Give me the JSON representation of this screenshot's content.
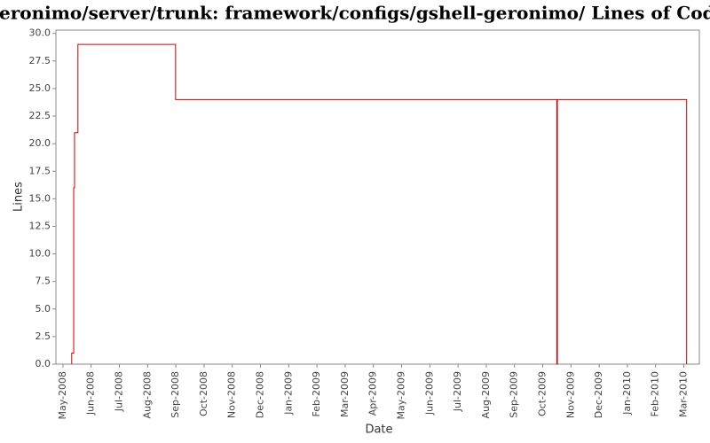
{
  "chart_data": {
    "type": "step",
    "title": "/geronimo/server/trunk: framework/configs/gshell-geronimo/ Lines of Code",
    "xlabel": "Date",
    "ylabel": "Lines",
    "series": [
      {
        "name": "Lines",
        "color": "#cc0000",
        "x": [
          0.31,
          0.38,
          0.41,
          0.53,
          3.99,
          17.5,
          17.52,
          22.1
        ],
        "values": [
          1,
          16,
          21,
          29,
          24,
          0,
          24,
          0
        ]
      }
    ],
    "xlim": [
      -0.25,
      22.55
    ],
    "xticks": [
      {
        "value": 0,
        "label": "May-2008"
      },
      {
        "value": 1,
        "label": "Jun-2008"
      },
      {
        "value": 2,
        "label": "Jul-2008"
      },
      {
        "value": 3,
        "label": "Aug-2008"
      },
      {
        "value": 4,
        "label": "Sep-2008"
      },
      {
        "value": 5,
        "label": "Oct-2008"
      },
      {
        "value": 6,
        "label": "Nov-2008"
      },
      {
        "value": 7,
        "label": "Dec-2008"
      },
      {
        "value": 8,
        "label": "Jan-2009"
      },
      {
        "value": 9,
        "label": "Feb-2009"
      },
      {
        "value": 10,
        "label": "Mar-2009"
      },
      {
        "value": 11,
        "label": "Apr-2009"
      },
      {
        "value": 12,
        "label": "May-2009"
      },
      {
        "value": 13,
        "label": "Jun-2009"
      },
      {
        "value": 14,
        "label": "Jul-2009"
      },
      {
        "value": 15,
        "label": "Aug-2009"
      },
      {
        "value": 16,
        "label": "Sep-2009"
      },
      {
        "value": 17,
        "label": "Oct-2009"
      },
      {
        "value": 18,
        "label": "Nov-2009"
      },
      {
        "value": 19,
        "label": "Dec-2009"
      },
      {
        "value": 20,
        "label": "Jan-2010"
      },
      {
        "value": 21,
        "label": "Feb-2010"
      },
      {
        "value": 22,
        "label": "Mar-2010"
      }
    ],
    "ylim": [
      0,
      30.3
    ],
    "yticks": [
      {
        "value": 0,
        "label": "0.0"
      },
      {
        "value": 2.5,
        "label": "2.5"
      },
      {
        "value": 5,
        "label": "5.0"
      },
      {
        "value": 7.5,
        "label": "7.5"
      },
      {
        "value": 10,
        "label": "10.0"
      },
      {
        "value": 12.5,
        "label": "12.5"
      },
      {
        "value": 15,
        "label": "15.0"
      },
      {
        "value": 17.5,
        "label": "17.5"
      },
      {
        "value": 20,
        "label": "20.0"
      },
      {
        "value": 22.5,
        "label": "22.5"
      },
      {
        "value": 25,
        "label": "25.0"
      },
      {
        "value": 27.5,
        "label": "27.5"
      },
      {
        "value": 30,
        "label": "30.0"
      }
    ]
  }
}
